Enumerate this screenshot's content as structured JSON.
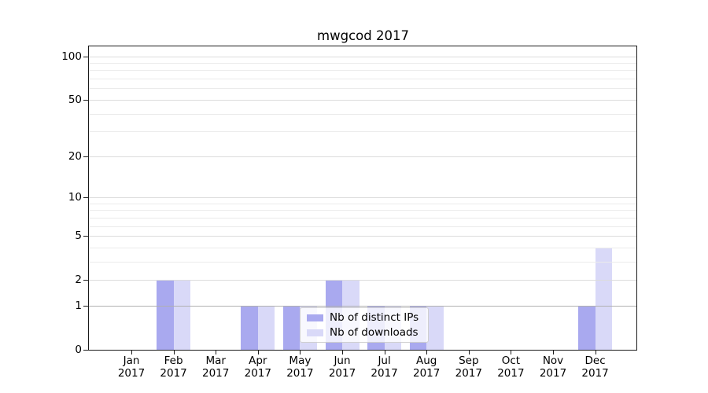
{
  "chart_data": {
    "type": "bar",
    "title": "mwgcod 2017",
    "categories": [
      "Jan",
      "Feb",
      "Mar",
      "Apr",
      "May",
      "Jun",
      "Jul",
      "Aug",
      "Sep",
      "Oct",
      "Nov",
      "Dec"
    ],
    "x_tick_year": "2017",
    "series": [
      {
        "name": "Nb of distinct IPs",
        "color": "#a9a9ef",
        "values": [
          0,
          2,
          0,
          1,
          1,
          2,
          1,
          1,
          0,
          0,
          0,
          1
        ]
      },
      {
        "name": "Nb of downloads",
        "color": "#d9d9f8",
        "values": [
          0,
          2,
          0,
          1,
          1,
          2,
          1,
          1,
          0,
          0,
          0,
          4
        ]
      }
    ],
    "y_scale": "log1p",
    "y_axis": {
      "tick_labels": [
        "0",
        "1",
        "2",
        "5",
        "10",
        "20",
        "50",
        "100"
      ],
      "major_ticks": [
        0,
        1,
        2,
        5,
        10,
        20,
        50,
        100
      ],
      "minor_gridlines": [
        3,
        4,
        6,
        7,
        8,
        9,
        30,
        40,
        60,
        70,
        80,
        90
      ],
      "top_value": 117,
      "emphasized_gridline": 1
    },
    "grid": true,
    "legend_position": "lower center",
    "colors": {
      "major_grid": "#dcdcdc",
      "minor_grid": "#ebebeb",
      "emphasis_grid": "#b0b0b0",
      "axis": "#1a1a1a"
    }
  }
}
